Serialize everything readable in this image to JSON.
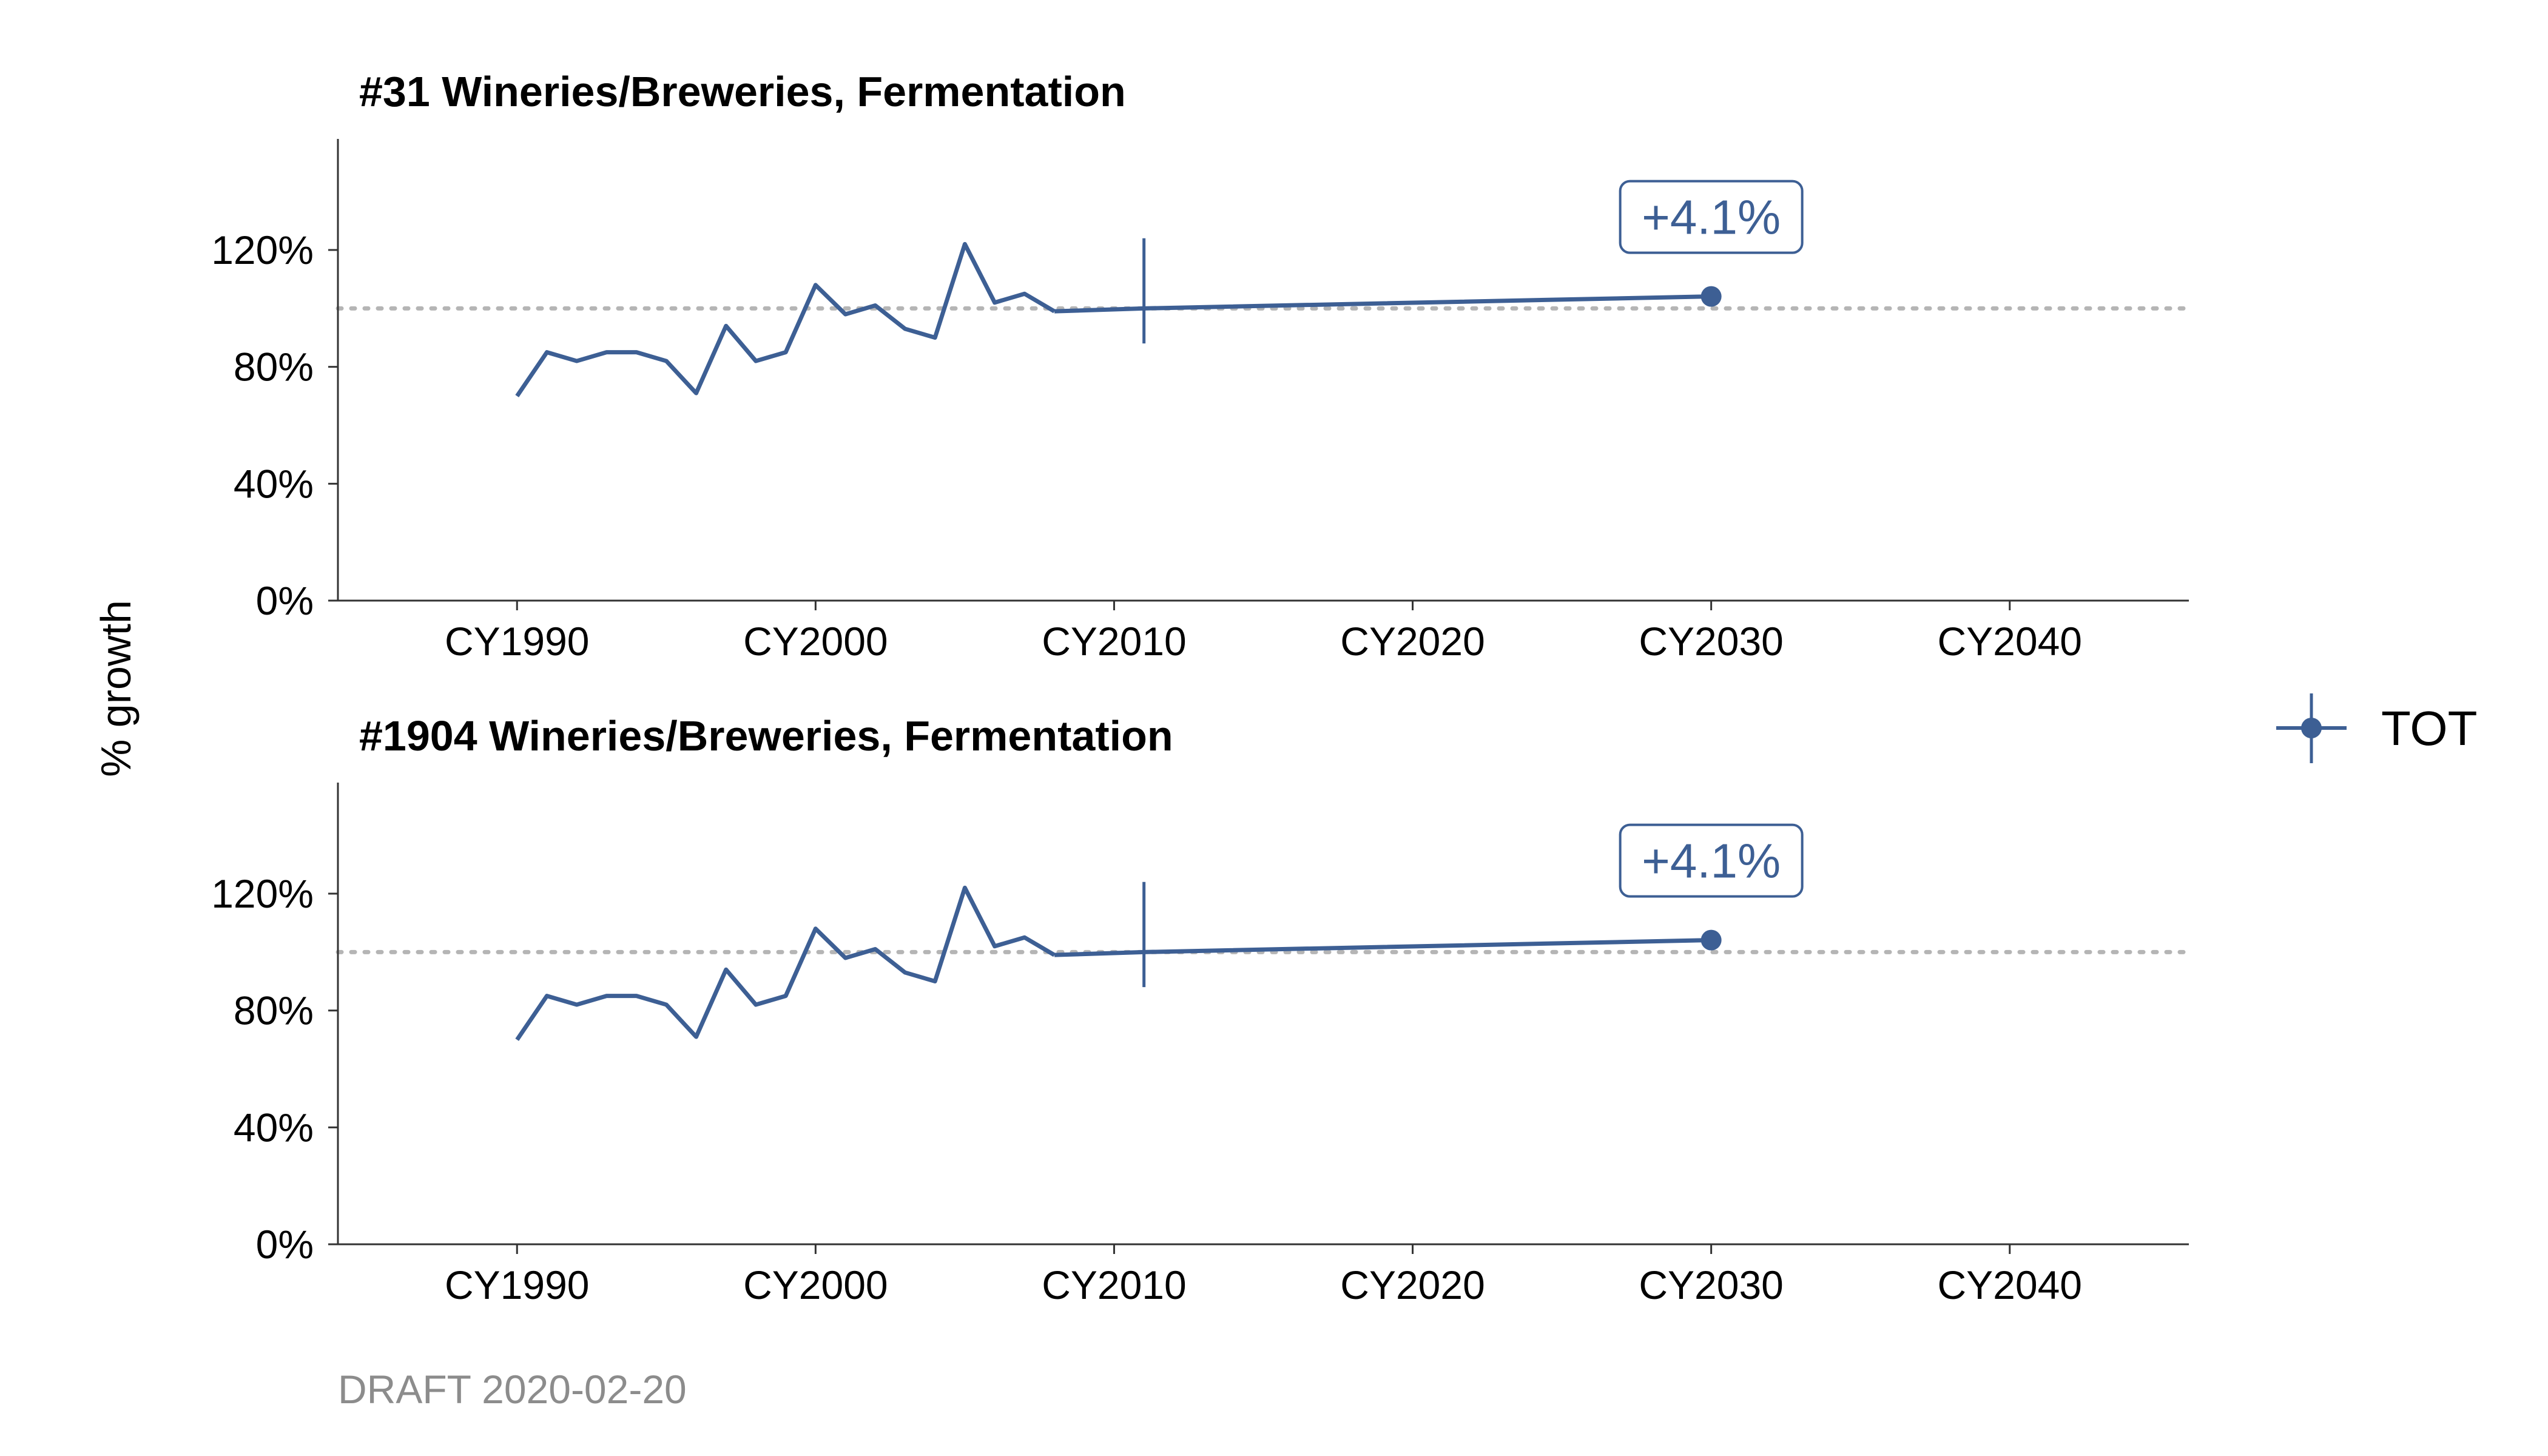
{
  "ylabel": "% growth",
  "footer": "DRAFT 2020-02-20",
  "legend": {
    "label": "TOT",
    "color": "#3d5f94"
  },
  "colors": {
    "series": "#3d5f94",
    "reference": "#b5b5b5",
    "axis": "#333333"
  },
  "chart_data": [
    {
      "type": "line",
      "title": "#31 Wineries/Breweries, Fermentation",
      "xlabel": "",
      "ylabel": "% growth",
      "xlim": [
        1984,
        2046
      ],
      "ylim": [
        0,
        158
      ],
      "x_ticks": [
        1990,
        2000,
        2010,
        2020,
        2030,
        2040
      ],
      "x_tick_labels": [
        "CY1990",
        "CY2000",
        "CY2010",
        "CY2020",
        "CY2030",
        "CY2040"
      ],
      "y_ticks": [
        0,
        40,
        80,
        120
      ],
      "y_tick_labels": [
        "0%",
        "40%",
        "80%",
        "120%"
      ],
      "reference_line": 100,
      "grid": false,
      "series": [
        {
          "name": "TOT",
          "historical": {
            "x": [
              1990,
              1991,
              1992,
              1993,
              1994,
              1995,
              1996,
              1997,
              1998,
              1999,
              2000,
              2001,
              2002,
              2003,
              2004,
              2005,
              2006,
              2007,
              2008
            ],
            "y": [
              70,
              85,
              82,
              85,
              85,
              82,
              71,
              94,
              82,
              85,
              108,
              98,
              101,
              93,
              90,
              122,
              102,
              105,
              99
            ]
          },
          "projection": {
            "x": [
              2008,
              2011,
              2030
            ],
            "y": [
              99,
              100,
              104.1
            ]
          },
          "base_year": 2011,
          "end_point": {
            "x": 2030,
            "y": 104.1
          },
          "annotation": "+4.1%"
        }
      ]
    },
    {
      "type": "line",
      "title": "#1904 Wineries/Breweries, Fermentation",
      "xlabel": "",
      "ylabel": "% growth",
      "xlim": [
        1984,
        2046
      ],
      "ylim": [
        0,
        158
      ],
      "x_ticks": [
        1990,
        2000,
        2010,
        2020,
        2030,
        2040
      ],
      "x_tick_labels": [
        "CY1990",
        "CY2000",
        "CY2010",
        "CY2020",
        "CY2030",
        "CY2040"
      ],
      "y_ticks": [
        0,
        40,
        80,
        120
      ],
      "y_tick_labels": [
        "0%",
        "40%",
        "80%",
        "120%"
      ],
      "reference_line": 100,
      "grid": false,
      "series": [
        {
          "name": "TOT",
          "historical": {
            "x": [
              1990,
              1991,
              1992,
              1993,
              1994,
              1995,
              1996,
              1997,
              1998,
              1999,
              2000,
              2001,
              2002,
              2003,
              2004,
              2005,
              2006,
              2007,
              2008
            ],
            "y": [
              70,
              85,
              82,
              85,
              85,
              82,
              71,
              94,
              82,
              85,
              108,
              98,
              101,
              93,
              90,
              122,
              102,
              105,
              99
            ]
          },
          "projection": {
            "x": [
              2008,
              2011,
              2030
            ],
            "y": [
              99,
              100,
              104.1
            ]
          },
          "base_year": 2011,
          "end_point": {
            "x": 2030,
            "y": 104.1
          },
          "annotation": "+4.1%"
        }
      ]
    }
  ]
}
